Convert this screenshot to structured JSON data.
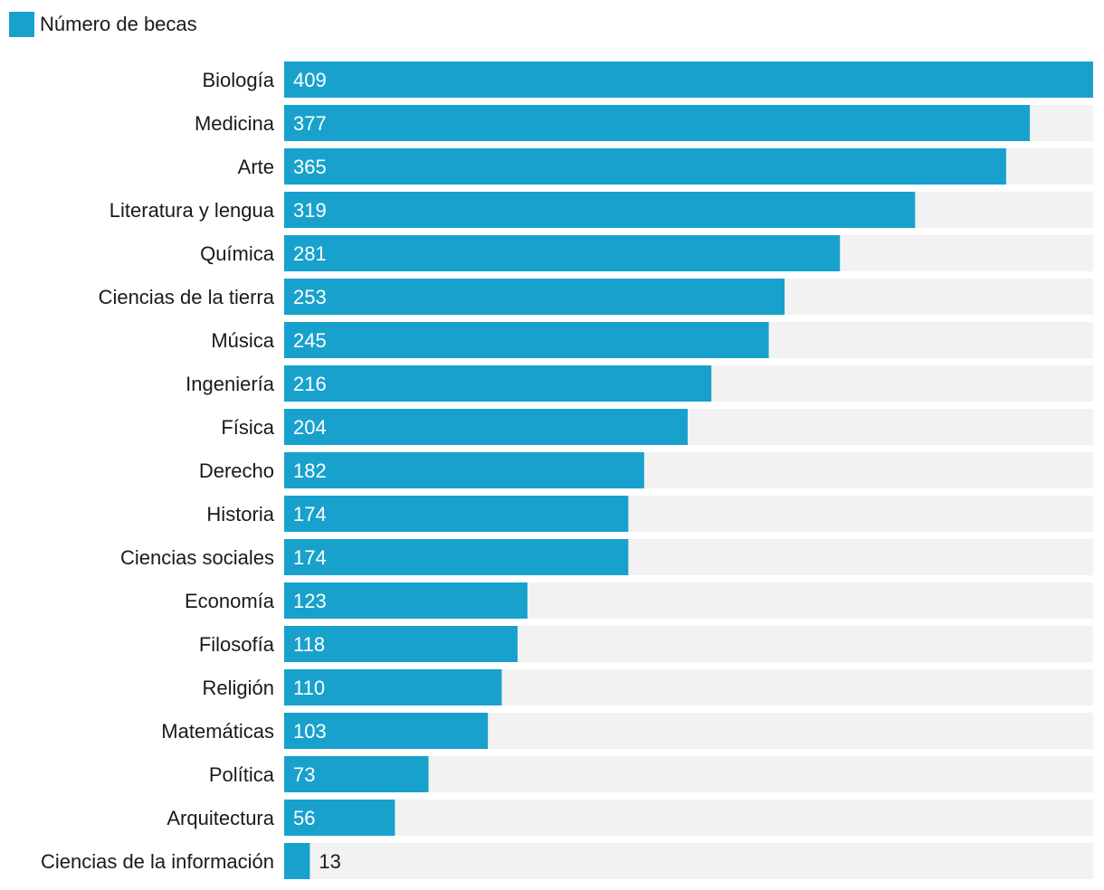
{
  "colors": {
    "bar": "#18a1cd",
    "track": "#f2f2f2",
    "label_inside": "#ffffff",
    "label_outside": "#1a1a1a"
  },
  "chart_data": {
    "type": "bar",
    "orientation": "horizontal",
    "legend": {
      "position": "top-left",
      "entries": [
        "Número de becas"
      ]
    },
    "series": [
      {
        "name": "Número de becas",
        "values": [
          409,
          377,
          365,
          319,
          281,
          253,
          245,
          216,
          204,
          182,
          174,
          174,
          123,
          118,
          110,
          103,
          73,
          56,
          13
        ]
      }
    ],
    "categories": [
      "Biología",
      "Medicina",
      "Arte",
      "Literatura y lengua",
      "Química",
      "Ciencias de la tierra",
      "Música",
      "Ingeniería",
      "Física",
      "Derecho",
      "Historia",
      "Ciencias sociales",
      "Economía",
      "Filosofía",
      "Religión",
      "Matemáticas",
      "Política",
      "Arquitectura",
      "Ciencias de la información"
    ],
    "xlim": [
      0,
      409
    ],
    "grid": false,
    "data_labels": true
  }
}
